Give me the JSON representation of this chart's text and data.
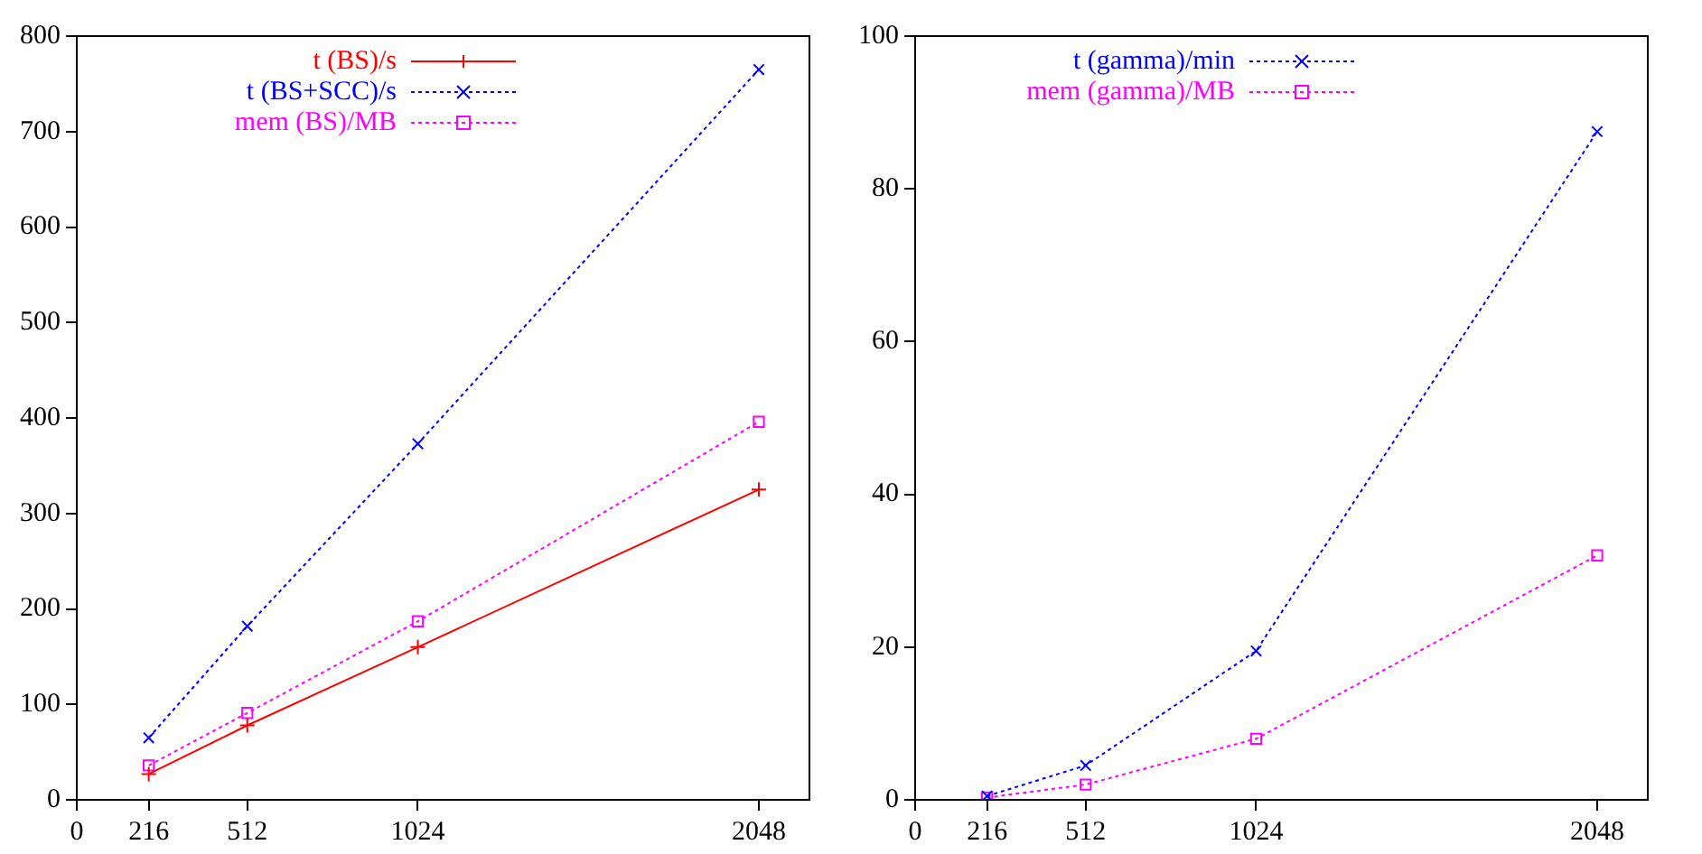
{
  "chart_data": [
    {
      "type": "line",
      "x": [
        216,
        512,
        1024,
        2048
      ],
      "xlim": [
        0,
        2200
      ],
      "xticks": [
        0,
        216,
        512,
        1024,
        2048
      ],
      "ylim": [
        0,
        800
      ],
      "yticks": [
        0,
        100,
        200,
        300,
        400,
        500,
        600,
        700,
        800
      ],
      "grid": false,
      "legend": "top left",
      "series": [
        {
          "name": "t (BS)/s",
          "color": "#ff0000",
          "values": [
            27,
            78,
            160,
            325
          ],
          "marker": "cross",
          "line_style": "solid"
        },
        {
          "name": "t (BS+SCC)/s",
          "color": "#0000ff",
          "values": [
            65,
            182,
            373,
            765
          ],
          "marker": "x",
          "line_style": "dotted"
        },
        {
          "name": "mem (BS)/MB",
          "color": "#ff00ff",
          "values": [
            36,
            91,
            187,
            396
          ],
          "marker": "square",
          "line_style": "dotted"
        }
      ]
    },
    {
      "type": "line",
      "x": [
        216,
        512,
        1024,
        2048
      ],
      "xlim": [
        0,
        2200
      ],
      "xticks": [
        0,
        216,
        512,
        1024,
        2048
      ],
      "ylim": [
        0,
        100
      ],
      "yticks": [
        0,
        20,
        40,
        60,
        80,
        100
      ],
      "grid": false,
      "legend": "top left",
      "series": [
        {
          "name": "t (gamma)/min",
          "color": "#0000ff",
          "values": [
            0.5,
            4.5,
            19.5,
            87.5
          ],
          "marker": "x",
          "line_style": "dotted"
        },
        {
          "name": "mem (gamma)/MB",
          "color": "#ff00ff",
          "values": [
            0.3,
            2,
            8,
            32
          ],
          "marker": "square",
          "line_style": "dotted"
        }
      ]
    }
  ]
}
